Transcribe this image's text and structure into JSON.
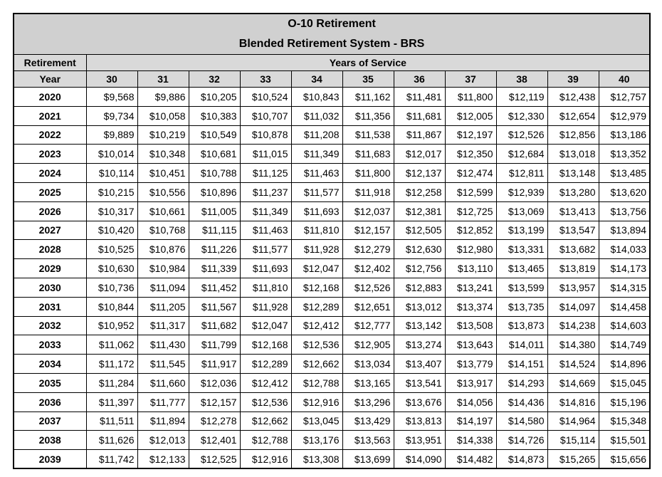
{
  "title": [
    "O-10 Retirement",
    "Blended Retirement System - BRS"
  ],
  "header": {
    "row_label_top": "Retirement",
    "row_label_bottom": "Year",
    "group": "Years of Service",
    "columns": [
      "30",
      "31",
      "32",
      "33",
      "34",
      "35",
      "36",
      "37",
      "38",
      "39",
      "40"
    ]
  },
  "table": {
    "rows": [
      [
        "2020",
        "$9,568",
        "$9,886",
        "$10,205",
        "$10,524",
        "$10,843",
        "$11,162",
        "$11,481",
        "$11,800",
        "$12,119",
        "$12,438",
        "$12,757"
      ],
      [
        "2021",
        "$9,734",
        "$10,058",
        "$10,383",
        "$10,707",
        "$11,032",
        "$11,356",
        "$11,681",
        "$12,005",
        "$12,330",
        "$12,654",
        "$12,979"
      ],
      [
        "2022",
        "$9,889",
        "$10,219",
        "$10,549",
        "$10,878",
        "$11,208",
        "$11,538",
        "$11,867",
        "$12,197",
        "$12,526",
        "$12,856",
        "$13,186"
      ],
      [
        "2023",
        "$10,014",
        "$10,348",
        "$10,681",
        "$11,015",
        "$11,349",
        "$11,683",
        "$12,017",
        "$12,350",
        "$12,684",
        "$13,018",
        "$13,352"
      ],
      [
        "2024",
        "$10,114",
        "$10,451",
        "$10,788",
        "$11,125",
        "$11,463",
        "$11,800",
        "$12,137",
        "$12,474",
        "$12,811",
        "$13,148",
        "$13,485"
      ],
      [
        "2025",
        "$10,215",
        "$10,556",
        "$10,896",
        "$11,237",
        "$11,577",
        "$11,918",
        "$12,258",
        "$12,599",
        "$12,939",
        "$13,280",
        "$13,620"
      ],
      [
        "2026",
        "$10,317",
        "$10,661",
        "$11,005",
        "$11,349",
        "$11,693",
        "$12,037",
        "$12,381",
        "$12,725",
        "$13,069",
        "$13,413",
        "$13,756"
      ],
      [
        "2027",
        "$10,420",
        "$10,768",
        "$11,115",
        "$11,463",
        "$11,810",
        "$12,157",
        "$12,505",
        "$12,852",
        "$13,199",
        "$13,547",
        "$13,894"
      ],
      [
        "2028",
        "$10,525",
        "$10,876",
        "$11,226",
        "$11,577",
        "$11,928",
        "$12,279",
        "$12,630",
        "$12,980",
        "$13,331",
        "$13,682",
        "$14,033"
      ],
      [
        "2029",
        "$10,630",
        "$10,984",
        "$11,339",
        "$11,693",
        "$12,047",
        "$12,402",
        "$12,756",
        "$13,110",
        "$13,465",
        "$13,819",
        "$14,173"
      ],
      [
        "2030",
        "$10,736",
        "$11,094",
        "$11,452",
        "$11,810",
        "$12,168",
        "$12,526",
        "$12,883",
        "$13,241",
        "$13,599",
        "$13,957",
        "$14,315"
      ],
      [
        "2031",
        "$10,844",
        "$11,205",
        "$11,567",
        "$11,928",
        "$12,289",
        "$12,651",
        "$13,012",
        "$13,374",
        "$13,735",
        "$14,097",
        "$14,458"
      ],
      [
        "2032",
        "$10,952",
        "$11,317",
        "$11,682",
        "$12,047",
        "$12,412",
        "$12,777",
        "$13,142",
        "$13,508",
        "$13,873",
        "$14,238",
        "$14,603"
      ],
      [
        "2033",
        "$11,062",
        "$11,430",
        "$11,799",
        "$12,168",
        "$12,536",
        "$12,905",
        "$13,274",
        "$13,643",
        "$14,011",
        "$14,380",
        "$14,749"
      ],
      [
        "2034",
        "$11,172",
        "$11,545",
        "$11,917",
        "$12,289",
        "$12,662",
        "$13,034",
        "$13,407",
        "$13,779",
        "$14,151",
        "$14,524",
        "$14,896"
      ],
      [
        "2035",
        "$11,284",
        "$11,660",
        "$12,036",
        "$12,412",
        "$12,788",
        "$13,165",
        "$13,541",
        "$13,917",
        "$14,293",
        "$14,669",
        "$15,045"
      ],
      [
        "2036",
        "$11,397",
        "$11,777",
        "$12,157",
        "$12,536",
        "$12,916",
        "$13,296",
        "$13,676",
        "$14,056",
        "$14,436",
        "$14,816",
        "$15,196"
      ],
      [
        "2037",
        "$11,511",
        "$11,894",
        "$12,278",
        "$12,662",
        "$13,045",
        "$13,429",
        "$13,813",
        "$14,197",
        "$14,580",
        "$14,964",
        "$15,348"
      ],
      [
        "2038",
        "$11,626",
        "$12,013",
        "$12,401",
        "$12,788",
        "$13,176",
        "$13,563",
        "$13,951",
        "$14,338",
        "$14,726",
        "$15,114",
        "$15,501"
      ],
      [
        "2039",
        "$11,742",
        "$12,133",
        "$12,525",
        "$12,916",
        "$13,308",
        "$13,699",
        "$14,090",
        "$14,482",
        "$14,873",
        "$15,265",
        "$15,656"
      ]
    ]
  }
}
